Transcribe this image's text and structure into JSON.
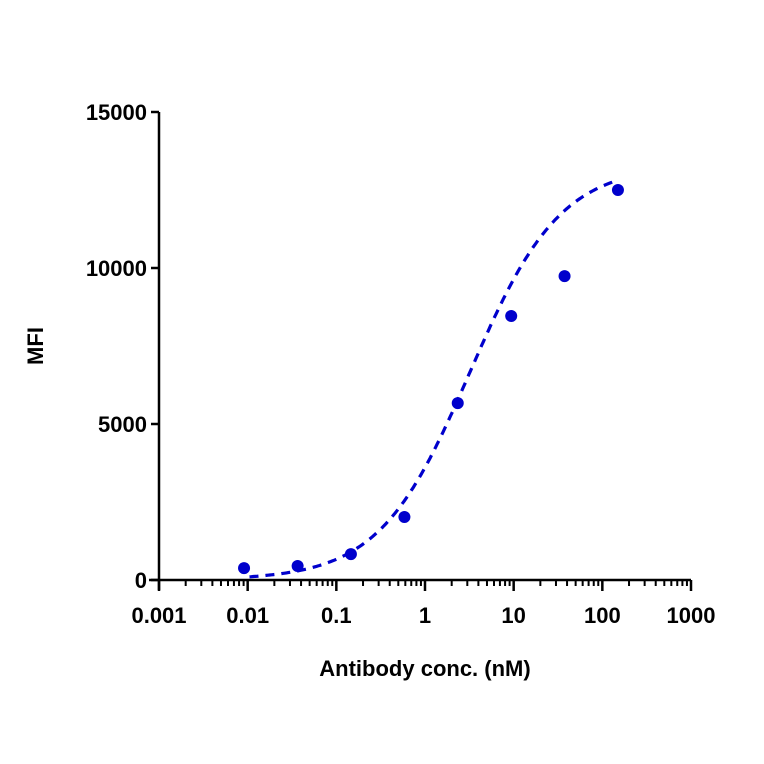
{
  "chart_data": {
    "type": "scatter",
    "title": "",
    "xlabel": "Antibody conc. (nM)",
    "ylabel": "MFI",
    "xscale": "log",
    "xlim": [
      0.001,
      1000
    ],
    "ylim": [
      0,
      15000
    ],
    "x_ticks": [
      "0.001",
      "0.01",
      "0.1",
      "1",
      "10",
      "100",
      "1000"
    ],
    "y_ticks": [
      "0",
      "5000",
      "10000",
      "15000"
    ],
    "grid": false,
    "legend": null,
    "series": [
      {
        "name": "MFI",
        "marker": "filled-circle",
        "color": "#0000CC",
        "x": [
          0.0091,
          0.0366,
          0.146,
          0.586,
          2.34,
          9.38,
          37.5,
          150
        ],
        "y": [
          380,
          450,
          830,
          2020,
          5670,
          8460,
          9740,
          12500
        ]
      },
      {
        "name": "fit",
        "type": "line",
        "style": "dashed",
        "color": "#0000CC",
        "description": "4-parameter logistic fit"
      }
    ]
  },
  "axes": {
    "x_title": "Antibody conc. (nM)",
    "y_title": "MFI",
    "x_tick_labels": [
      "0.001",
      "0.01",
      "0.1",
      "1",
      "10",
      "100",
      "1000"
    ],
    "y_tick_labels": [
      "0",
      "5000",
      "10000",
      "15000"
    ]
  },
  "colors": {
    "series": "#0000CC",
    "axis": "#000000"
  }
}
